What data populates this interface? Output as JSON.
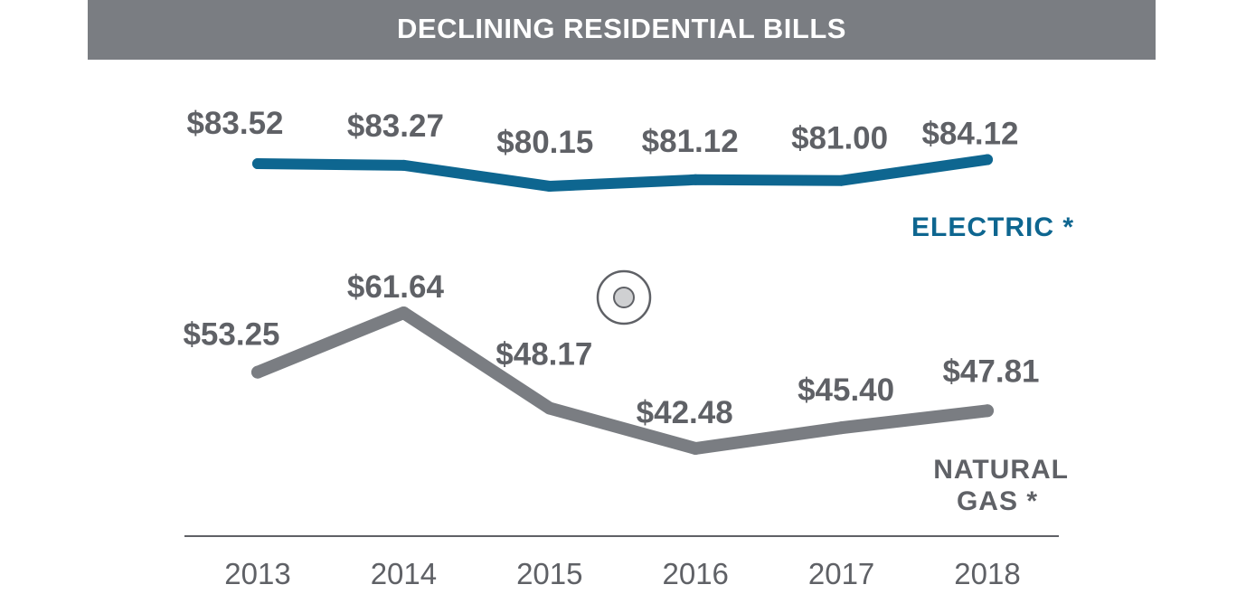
{
  "chart_data": {
    "type": "line",
    "title": "DECLINING RESIDENTIAL BILLS",
    "categories": [
      "2013",
      "2014",
      "2015",
      "2016",
      "2017",
      "2018"
    ],
    "series": [
      {
        "name": "ELECTRIC *",
        "values": [
          83.52,
          83.27,
          80.15,
          81.12,
          81.0,
          84.12
        ],
        "labels": [
          "$83.52",
          "$83.27",
          "$80.15",
          "$81.12",
          "$81.00",
          "$84.12"
        ],
        "color": "#0e6690"
      },
      {
        "name_lines": [
          "NATURAL",
          "GAS *"
        ],
        "values": [
          53.25,
          61.64,
          48.17,
          42.48,
          45.4,
          47.81
        ],
        "labels": [
          "$53.25",
          "$61.64",
          "$48.17",
          "$42.48",
          "$45.40",
          "$47.81"
        ],
        "color": "#7a7d82"
      }
    ],
    "grid": false,
    "legend": "none"
  },
  "colors": {
    "title_bar": "#7a7d82",
    "electric": "#0e6690",
    "natural_gas": "#7a7d82",
    "text": "#5f6166"
  }
}
